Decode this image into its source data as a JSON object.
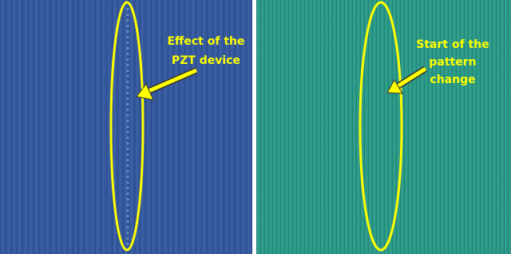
{
  "panels": [
    {
      "annotation": [
        "Effect of the",
        "PZT device"
      ]
    },
    {
      "annotation": [
        "Start of the",
        "pattern",
        "change"
      ]
    }
  ]
}
